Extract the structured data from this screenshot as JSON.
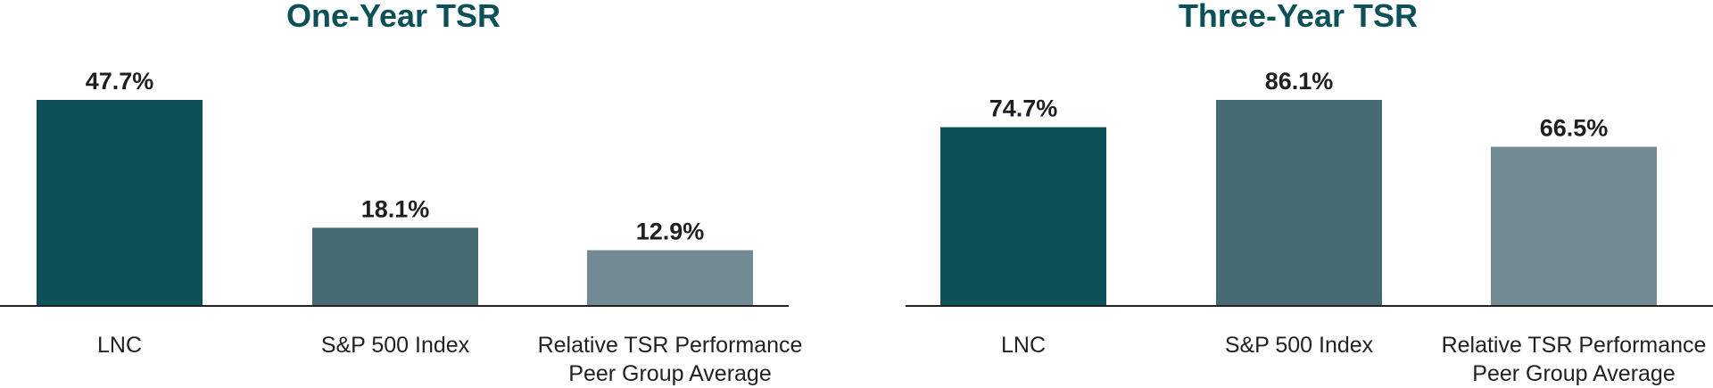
{
  "colors": {
    "title": "#0c5158",
    "bars": [
      "#0c5158",
      "#466a73",
      "#728a94"
    ],
    "axis": "#222222"
  },
  "chart_data": [
    {
      "type": "bar",
      "title": "One-Year TSR",
      "categories": [
        "LNC",
        "S&P 500 Index",
        "Relative TSR Performance\nPeer Group Average"
      ],
      "values": [
        47.7,
        18.1,
        12.9
      ],
      "value_labels": [
        "47.7%",
        "18.1%",
        "12.9%"
      ],
      "ylim": [
        0,
        47.7
      ],
      "grid": false,
      "legend": "none"
    },
    {
      "type": "bar",
      "title": "Three-Year TSR",
      "categories": [
        "LNC",
        "S&P 500 Index",
        "Relative TSR Performance\nPeer Group Average"
      ],
      "values": [
        74.7,
        86.1,
        66.5
      ],
      "value_labels": [
        "74.7%",
        "86.1%",
        "66.5%"
      ],
      "ylim": [
        0,
        86.1
      ],
      "grid": false,
      "legend": "none"
    }
  ]
}
